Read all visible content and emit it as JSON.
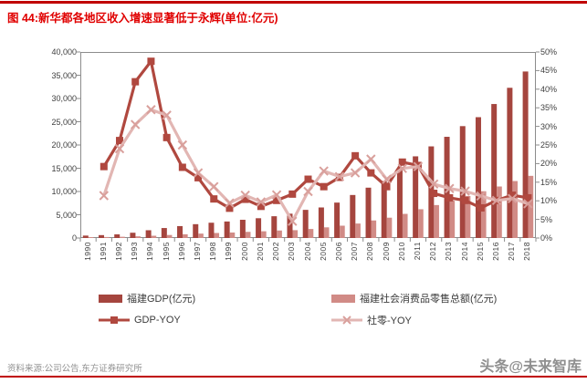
{
  "header": {
    "title": "图 44:新华都各地区收入增速显著低于永辉(单位:亿元)"
  },
  "footer": {
    "source": "资料来源:公司公告,东方证券研究所",
    "watermark": "头条@未来智库"
  },
  "colors": {
    "accent_red": "#c00000",
    "title_red": "#e00000",
    "gdp_bar": "#a5453e",
    "retail_bar": "#d18b86",
    "gdp_yoy_line": "#b0483f",
    "shels_yoy_line": "#e2b6b3",
    "shels_yoy_marker": "#d9a09c",
    "axis_line": "#8c8c8c",
    "axis_text": "#404040",
    "source_gray": "#909090"
  },
  "chart_data": {
    "type": "combo-bar-line",
    "categories": [
      "1990",
      "1991",
      "1992",
      "1993",
      "1994",
      "1995",
      "1996",
      "1997",
      "1998",
      "1999",
      "2000",
      "2001",
      "2002",
      "2003",
      "2004",
      "2005",
      "2006",
      "2007",
      "2008",
      "2009",
      "2010",
      "2011",
      "2012",
      "2013",
      "2014",
      "2015",
      "2016",
      "2017",
      "2018"
    ],
    "series": [
      {
        "name": "福建GDP(亿元)",
        "type": "bar",
        "axis": "left",
        "color": "#a5453e",
        "values": [
          522,
          622,
          785,
          1133,
          1672,
          2145,
          2560,
          2974,
          3286,
          3550,
          3920,
          4253,
          4682,
          5232,
          6053,
          6569,
          7615,
          9249,
          10823,
          12236,
          14737,
          17560,
          19702,
          21760,
          24056,
          25980,
          28811,
          32298,
          35804
        ]
      },
      {
        "name": "福建社会消费品零售总额(亿元)",
        "type": "bar",
        "axis": "left",
        "color": "#d18b86",
        "values": [
          193,
          215,
          267,
          359,
          486,
          646,
          806,
          947,
          1078,
          1180,
          1321,
          1448,
          1611,
          1687,
          1940,
          2293,
          2649,
          3113,
          3774,
          4370,
          5189,
          6186,
          7085,
          8024,
          9035,
          10056,
          11075,
          12248,
          13366
        ]
      },
      {
        "name": "GDP-YOY",
        "type": "line",
        "marker": "square",
        "axis": "right",
        "color": "#b0483f",
        "values": [
          null,
          19.2,
          26.2,
          42,
          47.5,
          27,
          19,
          16.2,
          10.5,
          8,
          10.4,
          8.5,
          10.1,
          11.8,
          15.8,
          13.8,
          16.3,
          22.1,
          17.5,
          13.8,
          20.4,
          19.5,
          12,
          10.8,
          10.1,
          8.1,
          10.1,
          11.5,
          10.8
        ]
      },
      {
        "name": "社零-YOY",
        "type": "line",
        "marker": "x",
        "axis": "right",
        "color": "#e2b6b3",
        "marker_color": "#d9a09c",
        "values": [
          null,
          11.4,
          24,
          30.5,
          34.5,
          33,
          25,
          17.5,
          13.8,
          9.4,
          11.5,
          9.7,
          11.6,
          4.5,
          12.5,
          18,
          16.5,
          17.5,
          21.2,
          15.8,
          18.7,
          19.2,
          14.5,
          13.3,
          12.6,
          11.3,
          10.1,
          10.6,
          9.2
        ]
      }
    ],
    "left_axis": {
      "min": 0,
      "max": 40000,
      "step": 5000,
      "ticks": [
        "0",
        "5,000",
        "10,000",
        "15,000",
        "20,000",
        "25,000",
        "30,000",
        "35,000",
        "40,000"
      ]
    },
    "right_axis": {
      "min": 0,
      "max": 50,
      "step": 5,
      "ticks": [
        "0%",
        "5%",
        "10%",
        "15%",
        "20%",
        "25%",
        "30%",
        "35%",
        "40%",
        "45%",
        "50%"
      ]
    },
    "grid": false,
    "legend_position": "bottom",
    "title": "图 44:新华都各地区收入增速显著低于永辉(单位:亿元)"
  }
}
